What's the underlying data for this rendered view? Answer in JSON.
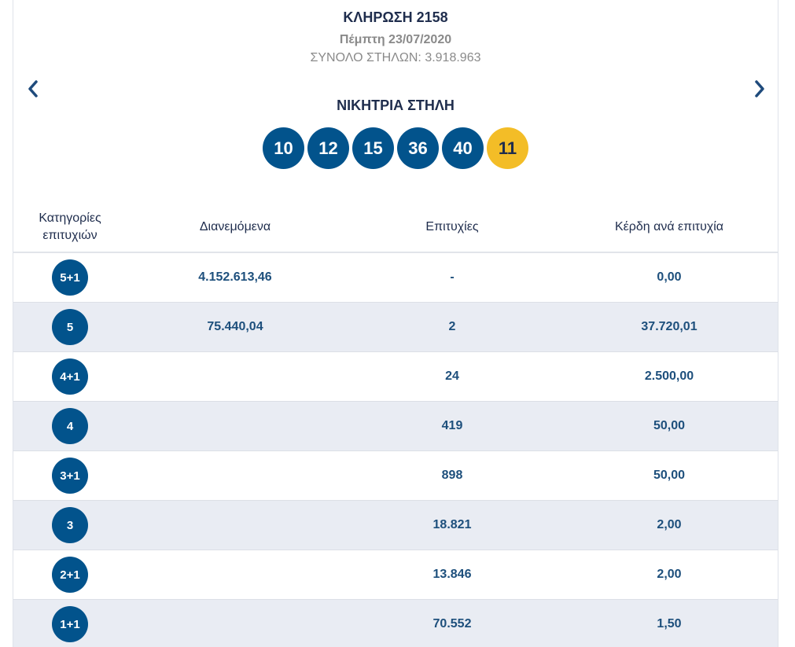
{
  "draw": {
    "title": "ΚΛΗΡΩΣΗ 2158",
    "date": "Πέμπτη 23/07/2020",
    "total_columns": "ΣΥΝΟΛΟ ΣΤΗΛΩΝ: 3.918.963",
    "winning_label": "ΝΙΚΗΤΡΙΑ ΣΤΗΛΗ",
    "numbers": [
      "10",
      "12",
      "15",
      "36",
      "40"
    ],
    "joker": "11"
  },
  "nav": {
    "prev_icon": "chevron-left-icon",
    "next_icon": "chevron-right-icon"
  },
  "colors": {
    "ball": "#02538c",
    "joker": "#f3bd27",
    "row_alt": "#e9ecf3"
  },
  "table": {
    "headers": [
      "Κατηγορίες\nεπιτυχιών",
      "Διανεμόμενα",
      "Επιτυχίες",
      "Κέρδη ανά επιτυχία"
    ],
    "rows": [
      {
        "category": "5+1",
        "distributed": "4.152.613,46",
        "winners": "-",
        "prize": "0,00"
      },
      {
        "category": "5",
        "distributed": "75.440,04",
        "winners": "2",
        "prize": "37.720,01"
      },
      {
        "category": "4+1",
        "distributed": "",
        "winners": "24",
        "prize": "2.500,00"
      },
      {
        "category": "4",
        "distributed": "",
        "winners": "419",
        "prize": "50,00"
      },
      {
        "category": "3+1",
        "distributed": "",
        "winners": "898",
        "prize": "50,00"
      },
      {
        "category": "3",
        "distributed": "",
        "winners": "18.821",
        "prize": "2,00"
      },
      {
        "category": "2+1",
        "distributed": "",
        "winners": "13.846",
        "prize": "2,00"
      },
      {
        "category": "1+1",
        "distributed": "",
        "winners": "70.552",
        "prize": "1,50"
      }
    ]
  }
}
